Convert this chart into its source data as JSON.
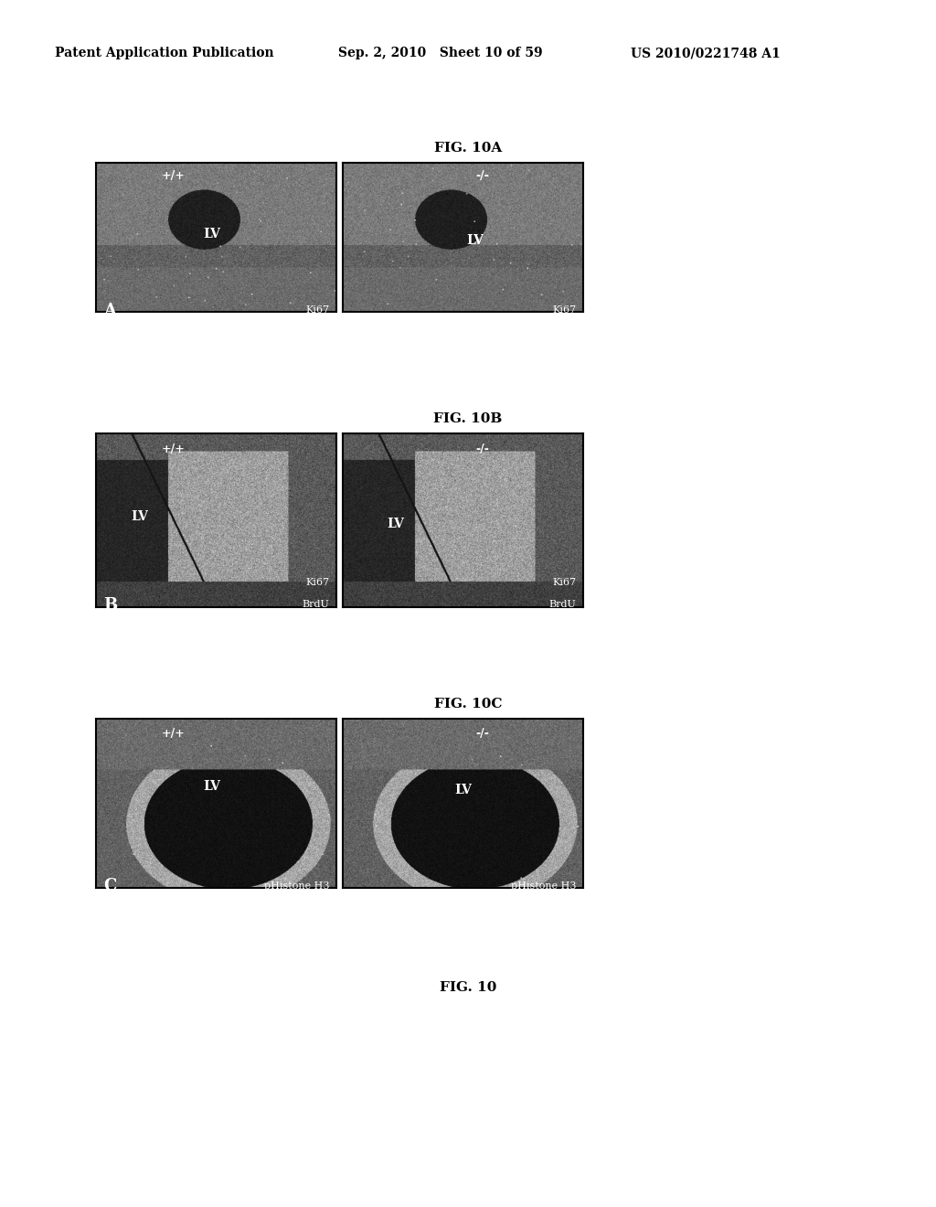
{
  "header_left": "Patent Application Publication",
  "header_mid": "Sep. 2, 2010   Sheet 10 of 59",
  "header_right": "US 2010/0221748 A1",
  "fig_labels": [
    "FIG. 10A",
    "FIG. 10B",
    "FIG. 10C"
  ],
  "footer_label": "FIG. 10",
  "panel_letters": [
    "A",
    "B",
    "C"
  ],
  "panel_markers_left": [
    "+/+",
    "+/+",
    "+/+"
  ],
  "panel_markers_right": [
    "-/-",
    "-/-",
    "-/-"
  ],
  "panel_top_right_labels_left": [
    "Ki67",
    "BrdU\nKi67",
    "pHistone H3"
  ],
  "panel_top_right_labels_right": [
    "Ki67",
    "BrdU\nKi67",
    "pHistone H3"
  ],
  "lv_labels": [
    "LV",
    "LV",
    "LV"
  ],
  "bg_color": "#ffffff",
  "panel_bg": "#888888",
  "header_fontsize": 10,
  "fig_label_fontsize": 11,
  "footer_fontsize": 11
}
